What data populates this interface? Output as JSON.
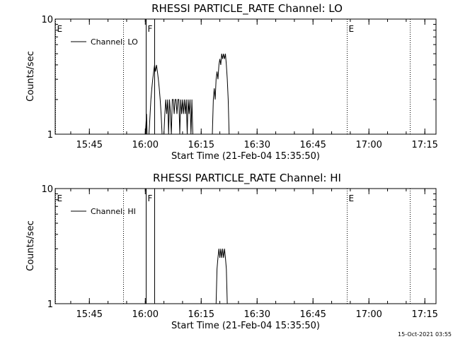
{
  "timestamp": "15-Oct-2021 03:55",
  "chart_data": [
    {
      "type": "line",
      "title": "RHESSI PARTICLE_RATE Channel: LO",
      "xlabel": "Start Time (21-Feb-04 15:35:50)",
      "ylabel": "Counts/sec",
      "y_scale": "log",
      "ylim": [
        1,
        10
      ],
      "y_ticks": [
        1,
        10
      ],
      "y_tick_labels": [
        "1",
        "10"
      ],
      "xlim": [
        "15:35:50",
        "17:18:00"
      ],
      "x_ticks": [
        "15:45",
        "16:00",
        "16:15",
        "16:30",
        "16:45",
        "17:00",
        "17:15"
      ],
      "legend": {
        "placement": "top-left",
        "entries": [
          "Channel: LO"
        ]
      },
      "vertical_markers": [
        {
          "label": "E",
          "time": "15:35:50",
          "style": "dotted"
        },
        {
          "label": "",
          "time": "15:54:00",
          "style": "dotted"
        },
        {
          "label": "F",
          "time": "16:00:05",
          "style": "solid"
        },
        {
          "label": "",
          "time": "16:02:30",
          "style": "solid"
        },
        {
          "label": "E",
          "time": "16:54:10",
          "style": "dotted"
        },
        {
          "label": "",
          "time": "17:11:00",
          "style": "dotted"
        }
      ],
      "series": [
        {
          "name": "Channel: LO",
          "x": [
            "16:00:00",
            "16:00:10",
            "16:00:20",
            "16:00:30",
            "16:01:00",
            "16:01:30",
            "16:01:45",
            "16:02:00",
            "16:02:15",
            "16:02:30",
            "16:02:45",
            "16:03:00",
            "16:03:15",
            "16:03:30",
            "16:03:45",
            "16:04:00",
            "16:04:15",
            "16:04:30",
            "16:05:00",
            "16:05:15",
            "16:05:30",
            "16:05:45",
            "16:06:00",
            "16:06:15",
            "16:06:30",
            "16:06:45",
            "16:07:00",
            "16:07:15",
            "16:07:30",
            "16:07:45",
            "16:08:00",
            "16:08:15",
            "16:08:30",
            "16:08:45",
            "16:09:00",
            "16:09:15",
            "16:09:30",
            "16:09:45",
            "16:10:00",
            "16:10:15",
            "16:10:30",
            "16:10:45",
            "16:11:00",
            "16:11:15",
            "16:11:30",
            "16:11:45",
            "16:12:00",
            "16:12:15",
            "16:12:30",
            "16:12:45",
            "16:13:00",
            "16:13:15",
            "16:13:30",
            "16:13:45",
            "16:14:00",
            "16:14:15",
            "16:14:30",
            "16:14:45",
            "16:15:00",
            "16:15:15",
            "16:15:30",
            "16:15:45",
            "16:16:00",
            "16:16:15",
            "16:16:30",
            "16:16:45",
            "16:17:00",
            "16:17:15",
            "16:17:30",
            "16:17:45",
            "16:18:00",
            "16:18:15",
            "16:18:30",
            "16:18:45",
            "16:19:00",
            "16:19:15",
            "16:19:30",
            "16:19:45",
            "16:20:00",
            "16:20:15",
            "16:20:30",
            "16:20:45",
            "16:21:00",
            "16:21:15",
            "16:21:30",
            "16:21:45",
            "16:22:00",
            "16:22:15",
            "16:22:30",
            "16:22:45",
            "16:23:00",
            "16:23:15",
            "16:23:30",
            "16:23:45",
            "16:24:00"
          ],
          "y": [
            1,
            1.2,
            1.5,
            1,
            1,
            2,
            2.5,
            3,
            3.5,
            4,
            3.5,
            4,
            3.5,
            3,
            2.5,
            2,
            1.5,
            1,
            1,
            1.5,
            2,
            1.5,
            2,
            1,
            2,
            1.5,
            1,
            2,
            2,
            1.5,
            2,
            2,
            1.5,
            2,
            2,
            1,
            2,
            1.5,
            2,
            1.5,
            2,
            1.5,
            2,
            1,
            2,
            1.5,
            2,
            1,
            2,
            1,
            1,
            1,
            1,
            1,
            1,
            1,
            1,
            1,
            1,
            1,
            1,
            1,
            1,
            1,
            1,
            1,
            1,
            1,
            1,
            1,
            1,
            2,
            2.5,
            2,
            3,
            3.5,
            3,
            4,
            4.5,
            4,
            5,
            4.5,
            5,
            4.5,
            5,
            4,
            3,
            2,
            1,
            1,
            1,
            1,
            1,
            1,
            1
          ]
        }
      ]
    },
    {
      "type": "line",
      "title": "RHESSI PARTICLE_RATE Channel: HI",
      "xlabel": "Start Time (21-Feb-04 15:35:50)",
      "ylabel": "Counts/sec",
      "y_scale": "log",
      "ylim": [
        1,
        10
      ],
      "y_ticks": [
        1,
        10
      ],
      "y_tick_labels": [
        "1",
        "10"
      ],
      "xlim": [
        "15:35:50",
        "17:18:00"
      ],
      "x_ticks": [
        "15:45",
        "16:00",
        "16:15",
        "16:30",
        "16:45",
        "17:00",
        "17:15"
      ],
      "legend": {
        "placement": "top-left",
        "entries": [
          "Channel: HI"
        ]
      },
      "vertical_markers": [
        {
          "label": "E",
          "time": "15:35:50",
          "style": "dotted"
        },
        {
          "label": "",
          "time": "15:54:00",
          "style": "dotted"
        },
        {
          "label": "F",
          "time": "16:00:05",
          "style": "solid"
        },
        {
          "label": "",
          "time": "16:02:30",
          "style": "solid"
        },
        {
          "label": "E",
          "time": "16:54:10",
          "style": "dotted"
        },
        {
          "label": "",
          "time": "17:11:00",
          "style": "dotted"
        }
      ],
      "series": [
        {
          "name": "Channel: HI",
          "x": [
            "16:19:00",
            "16:19:15",
            "16:19:30",
            "16:19:45",
            "16:20:00",
            "16:20:15",
            "16:20:30",
            "16:20:45",
            "16:21:00",
            "16:21:15",
            "16:21:30",
            "16:21:45",
            "16:22:00",
            "16:22:15",
            "16:22:30"
          ],
          "y": [
            1,
            2,
            2.5,
            3,
            2.5,
            3,
            2.5,
            3,
            2.5,
            3,
            2.5,
            2,
            1,
            1,
            1
          ]
        }
      ]
    }
  ]
}
